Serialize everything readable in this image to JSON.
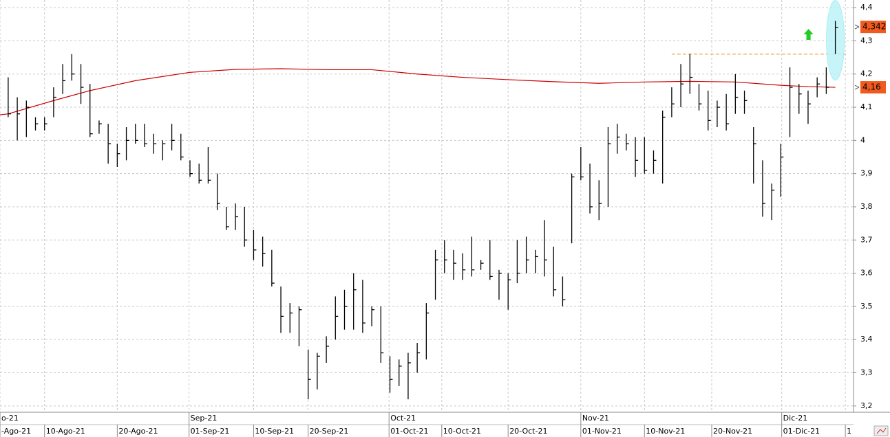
{
  "chart_data": {
    "type": "hlc",
    "color": "#000000",
    "xlim": [
      -0.9,
      93.0
    ],
    "ylim": [
      3.181,
      4.423
    ],
    "yticks": [
      {
        "value": 4.4,
        "label": "4,4"
      },
      {
        "value": 4.3,
        "label": "4,3"
      },
      {
        "value": 4.2,
        "label": "4,2"
      },
      {
        "value": 4.1,
        "label": "4,1"
      },
      {
        "value": 4,
        "label": "4"
      },
      {
        "value": 3.9,
        "label": "3,9"
      },
      {
        "value": 3.8,
        "label": "3,8"
      },
      {
        "value": 3.7,
        "label": "3,7"
      },
      {
        "value": 3.6,
        "label": "3,6"
      },
      {
        "value": 3.5,
        "label": "3,5"
      },
      {
        "value": 3.4,
        "label": "3,4"
      },
      {
        "value": 3.3,
        "label": "3,3"
      },
      {
        "value": 3.2,
        "label": "3,2"
      }
    ],
    "xticks": [
      {
        "value": -0.9,
        "label": "-Ago-21"
      },
      {
        "value": 4.0,
        "label": "10-Ago-21"
      },
      {
        "value": 12.0,
        "label": "20-Ago-21"
      },
      {
        "value": 19.9,
        "label": "01-Sep-21"
      },
      {
        "value": 27.0,
        "label": "10-Sep-21"
      },
      {
        "value": 33.0,
        "label": "20-Sep-21"
      },
      {
        "value": 41.9,
        "label": "01-Oct-21"
      },
      {
        "value": 47.7,
        "label": "10-Oct-21"
      },
      {
        "value": 55.0,
        "label": "20-Oct-21"
      },
      {
        "value": 63.0,
        "label": "01-Nov-21"
      },
      {
        "value": 70.0,
        "label": "10-Nov-21"
      },
      {
        "value": 77.4,
        "label": "20-Nov-21"
      },
      {
        "value": 85.1,
        "label": "01-Dic-21"
      },
      {
        "value": 92.1,
        "label": "1"
      }
    ],
    "month_ticks": [
      {
        "value": -0.9,
        "label": "o-21"
      },
      {
        "value": 19.9,
        "label": "Sep-21"
      },
      {
        "value": 41.9,
        "label": "Oct-21"
      },
      {
        "value": 63.0,
        "label": "Nov-21"
      },
      {
        "value": 85.1,
        "label": "Dic-21"
      }
    ],
    "grid": true,
    "high": [
      4.19,
      4.13,
      4.12,
      4.07,
      4.07,
      4.16,
      4.23,
      4.26,
      4.23,
      4.17,
      4.06,
      4.05,
      3.99,
      4.04,
      4.05,
      4.05,
      4.02,
      4.0,
      4.05,
      4.02,
      3.94,
      3.93,
      3.98,
      3.9,
      3.8,
      3.81,
      3.8,
      3.73,
      3.71,
      3.67,
      3.56,
      3.51,
      3.5,
      3.37,
      3.36,
      3.41,
      3.53,
      3.55,
      3.6,
      3.58,
      3.5,
      3.5,
      3.35,
      3.34,
      3.36,
      3.39,
      3.51,
      3.67,
      3.7,
      3.67,
      3.66,
      3.71,
      3.64,
      3.7,
      3.61,
      3.6,
      3.7,
      3.71,
      3.67,
      3.76,
      3.68,
      3.59,
      3.9,
      3.98,
      3.93,
      3.88,
      4.04,
      4.05,
      4.02,
      4.01,
      4.01,
      3.97,
      4.09,
      4.16,
      4.23,
      4.26,
      4.17,
      4.15,
      4.12,
      4.14,
      4.2,
      4.15,
      4.04,
      3.94,
      3.87,
      3.99,
      4.22,
      4.17,
      4.15,
      4.19,
      4.22,
      4.36
    ],
    "low": [
      4.07,
      4.0,
      4.01,
      4.03,
      4.03,
      4.07,
      4.14,
      4.18,
      4.11,
      4.01,
      4.02,
      3.93,
      3.92,
      3.94,
      3.99,
      3.98,
      3.96,
      3.94,
      3.97,
      3.94,
      3.89,
      3.87,
      3.87,
      3.79,
      3.73,
      3.73,
      3.68,
      3.64,
      3.62,
      3.56,
      3.42,
      3.42,
      3.38,
      3.22,
      3.25,
      3.33,
      3.4,
      3.43,
      3.43,
      3.42,
      3.44,
      3.33,
      3.24,
      3.26,
      3.22,
      3.3,
      3.34,
      3.52,
      3.6,
      3.58,
      3.58,
      3.59,
      3.61,
      3.58,
      3.52,
      3.49,
      3.57,
      3.6,
      3.6,
      3.59,
      3.53,
      3.5,
      3.69,
      3.88,
      3.78,
      3.76,
      3.8,
      3.96,
      3.97,
      3.89,
      3.9,
      3.9,
      3.87,
      4.07,
      4.1,
      4.14,
      4.09,
      4.03,
      4.04,
      4.03,
      4.08,
      4.08,
      3.87,
      3.77,
      3.76,
      3.83,
      4.01,
      4.08,
      4.05,
      4.13,
      4.14,
      4.26
    ],
    "close": [
      4.08,
      4.08,
      4.1,
      4.05,
      4.05,
      4.13,
      4.18,
      4.2,
      4.16,
      4.02,
      4.05,
      3.99,
      3.96,
      4.0,
      4.0,
      3.99,
      3.99,
      3.99,
      4.0,
      3.95,
      3.9,
      3.88,
      3.88,
      3.81,
      3.74,
      3.77,
      3.7,
      3.67,
      3.66,
      3.57,
      3.47,
      3.48,
      3.49,
      3.28,
      3.35,
      3.38,
      3.47,
      3.5,
      3.55,
      3.45,
      3.49,
      3.36,
      3.28,
      3.32,
      3.33,
      3.36,
      3.48,
      3.64,
      3.64,
      3.63,
      3.61,
      3.61,
      3.63,
      3.59,
      3.6,
      3.58,
      3.6,
      3.64,
      3.65,
      3.64,
      3.55,
      3.52,
      3.89,
      3.89,
      3.8,
      3.81,
      3.99,
      4.01,
      3.99,
      3.94,
      3.91,
      3.94,
      4.07,
      4.11,
      4.17,
      4.19,
      4.11,
      4.06,
      4.1,
      4.05,
      4.13,
      4.12,
      3.99,
      3.81,
      3.85,
      3.95,
      4.16,
      4.14,
      4.11,
      4.17,
      4.16,
      4.34
    ],
    "average": {
      "color": "#cc0000",
      "x": [
        -0.9,
        0,
        5,
        9,
        14,
        20,
        25,
        30,
        35,
        40,
        45,
        50,
        55,
        60,
        65,
        70,
        75,
        80,
        85,
        88,
        91
      ],
      "values": [
        4.077,
        4.08,
        4.12,
        4.15,
        4.18,
        4.205,
        4.214,
        4.216,
        4.213,
        4.213,
        4.2,
        4.19,
        4.183,
        4.177,
        4.172,
        4.176,
        4.178,
        4.176,
        4.166,
        4.162,
        4.16
      ]
    },
    "resistance": {
      "value": 4.26,
      "start": 73,
      "color": "#f0a050"
    },
    "last_labels": [
      {
        "value": 4.342,
        "label": "4,342"
      },
      {
        "value": 4.16,
        "label": "4,16"
      }
    ]
  }
}
